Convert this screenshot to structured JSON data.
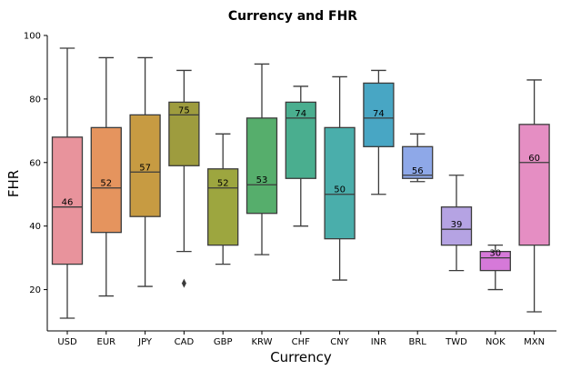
{
  "chart_data": {
    "type": "box",
    "title": "Currency and FHR",
    "xlabel": "Currency",
    "ylabel": "FHR",
    "ylim": [
      7,
      100
    ],
    "yticks": [
      20,
      40,
      60,
      80,
      100
    ],
    "grid": false,
    "legend": "none",
    "categories": [
      "USD",
      "EUR",
      "JPY",
      "CAD",
      "GBP",
      "KRW",
      "CHF",
      "CNY",
      "INR",
      "BRL",
      "TWD",
      "NOK",
      "MXN"
    ],
    "boxes": [
      {
        "category": "USD",
        "color": "#e8939c",
        "whislo": 11,
        "q1": 28,
        "med": 46,
        "q3": 68,
        "whishi": 96,
        "label": "46",
        "fliers": []
      },
      {
        "category": "EUR",
        "color": "#e5945e",
        "whislo": 18,
        "q1": 38,
        "med": 52,
        "q3": 71,
        "whishi": 93,
        "label": "52",
        "fliers": []
      },
      {
        "category": "JPY",
        "color": "#c79b42",
        "whislo": 21,
        "q1": 43,
        "med": 57,
        "q3": 75,
        "whishi": 93,
        "label": "57",
        "fliers": []
      },
      {
        "category": "CAD",
        "color": "#9e9c3e",
        "whislo": 32,
        "q1": 59,
        "med": 75,
        "q3": 79,
        "whishi": 89,
        "label": "75",
        "fliers": [
          22
        ]
      },
      {
        "category": "GBP",
        "color": "#9da63f",
        "whislo": 28,
        "q1": 34,
        "med": 52,
        "q3": 58,
        "whishi": 69,
        "label": "52",
        "fliers": []
      },
      {
        "category": "KRW",
        "color": "#56ae6c",
        "whislo": 31,
        "q1": 44,
        "med": 53,
        "q3": 74,
        "whishi": 91,
        "label": "53",
        "fliers": []
      },
      {
        "category": "CHF",
        "color": "#4aae8f",
        "whislo": 40,
        "q1": 55,
        "med": 74,
        "q3": 79,
        "whishi": 84,
        "label": "74",
        "fliers": []
      },
      {
        "category": "CNY",
        "color": "#4aaeab",
        "whislo": 23,
        "q1": 36,
        "med": 50,
        "q3": 71,
        "whishi": 87,
        "label": "50",
        "fliers": []
      },
      {
        "category": "INR",
        "color": "#48a6c4",
        "whislo": 50,
        "q1": 65,
        "med": 74,
        "q3": 85,
        "whishi": 89,
        "label": "74",
        "fliers": []
      },
      {
        "category": "BRL",
        "color": "#8ea8e8",
        "whislo": 54,
        "q1": 55,
        "med": 56,
        "q3": 65,
        "whishi": 69,
        "label": "56",
        "fliers": []
      },
      {
        "category": "TWD",
        "color": "#b5a3e3",
        "whislo": 26,
        "q1": 34,
        "med": 39,
        "q3": 46,
        "whishi": 56,
        "label": "39",
        "fliers": []
      },
      {
        "category": "NOK",
        "color": "#d679d9",
        "whislo": 20,
        "q1": 26,
        "med": 30,
        "q3": 32,
        "whishi": 34,
        "label": "30",
        "fliers": []
      },
      {
        "category": "MXN",
        "color": "#e58ec3",
        "whislo": 13,
        "q1": 34,
        "med": 60,
        "q3": 72,
        "whishi": 86,
        "label": "60",
        "fliers": []
      }
    ]
  }
}
